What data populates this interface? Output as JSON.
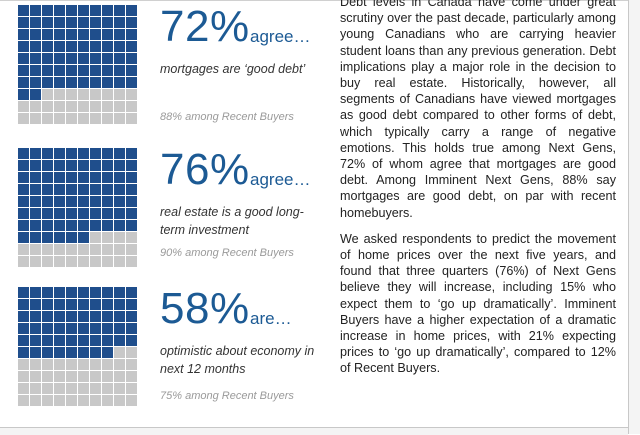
{
  "stats": [
    {
      "percent": "72%",
      "verb": "agree…",
      "description": "mortgages are ‘good debt’",
      "filled": 72,
      "note": "88% among Recent Buyers"
    },
    {
      "percent": "76%",
      "verb": "agree…",
      "description": "real estate is a good long-term investment",
      "filled": 76,
      "note": "90% among Recent Buyers"
    },
    {
      "percent": "58%",
      "verb": "are…",
      "description": "optimistic about economy in next 12 months",
      "filled": 58,
      "note": "75% among Recent Buyers"
    }
  ],
  "body": {
    "paragraph1": "Debt levels in Canada have come under great scrutiny over the past decade, particularly among young Canadians who are carrying heavier student loans than any previous generation. Debt implications play a major role in the decision to buy real estate. Historically, however, all segments of Canadians have viewed mortgages as good debt compared to other forms of debt, which typically carry a range of negative emotions. This holds true among Next Gens, 72% of whom agree that mortgages are good debt. Among Imminent Next Gens, 88% say mortgages are good debt, on par with recent homebuyers.",
    "paragraph2": "We asked respondents to predict the movement of home prices over the next five years, and found that three quarters (76%) of Next Gens believe they will increase, including 15% who expect them to ‘go up dramatically’. Imminent Buyers have a higher expectation of a dramatic increase in home prices, with 21% expecting prices to ‘go up dramatically’, compared to 12% of Recent Buyers."
  },
  "colors": {
    "filled": "#1f4e8c",
    "empty": "#c8c8c8",
    "accent_text": "#1c5a94"
  }
}
